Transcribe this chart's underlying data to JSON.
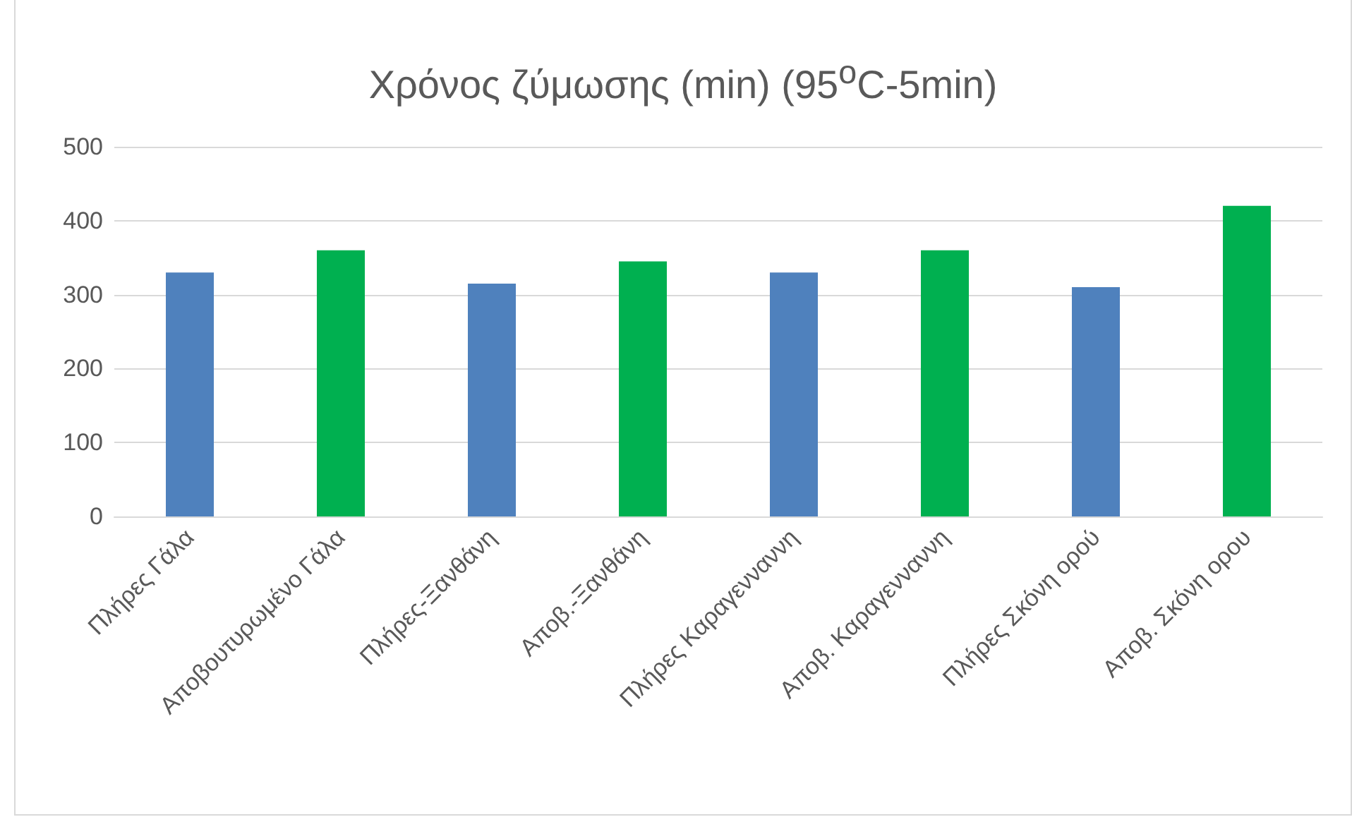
{
  "chart_data": {
    "type": "bar",
    "title": "Χρόνος ζύμωσης (min) (95$^{o}$C-5min)",
    "categories": [
      "Πλήρες Γάλα",
      "Αποβουτυρωμένο Γάλα",
      "Πλήρες-Ξανθάνη",
      "Αποβ.-Ξανθάνη",
      "Πλήρες Καραγενναννη",
      "Αποβ. Καραγενναννη",
      "Πλήρες Σκόνη ορού",
      "Αποβ. Σκόνη ορου"
    ],
    "values": [
      330,
      360,
      315,
      345,
      330,
      360,
      310,
      420
    ],
    "colors": [
      "#4f81bd",
      "#00b050",
      "#4f81bd",
      "#00b050",
      "#4f81bd",
      "#00b050",
      "#4f81bd",
      "#00b050"
    ],
    "ylim": [
      0,
      500
    ],
    "yticks": [
      0,
      100,
      200,
      300,
      400,
      500
    ],
    "grid": "y"
  }
}
